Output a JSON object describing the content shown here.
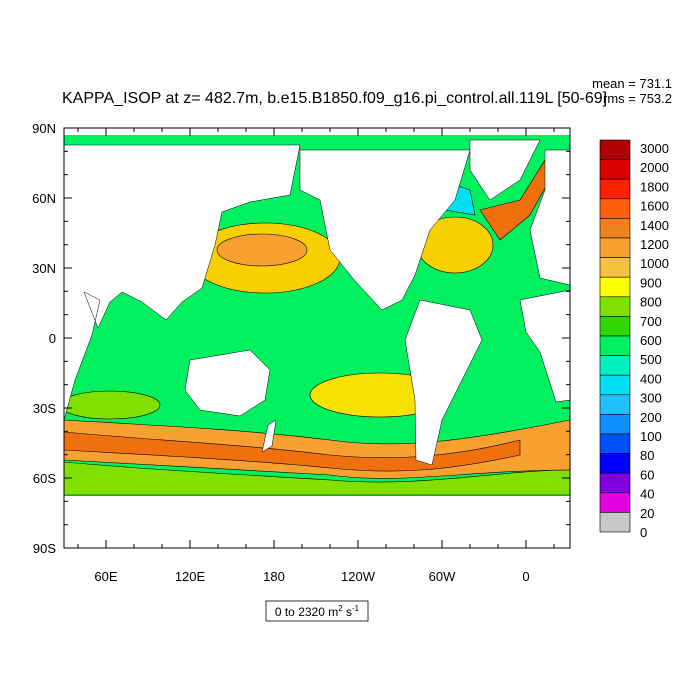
{
  "title": "KAPPA_ISOP at z= 482.7m, b.e15.B1850.f09_g16.pi_control.all.119L [50-69]",
  "stats": {
    "mean": "mean = 731.1",
    "rms": "rms = 753.2"
  },
  "lat_labels": [
    "90N",
    "60N",
    "30N",
    "0",
    "30S",
    "60S",
    "90S"
  ],
  "lon_labels": [
    "60E",
    "120E",
    "180",
    "120W",
    "60W",
    "0"
  ],
  "colorbar_labels": [
    "3000",
    "2000",
    "1800",
    "1600",
    "1400",
    "1200",
    "1000",
    "900",
    "800",
    "700",
    "600",
    "500",
    "400",
    "300",
    "200",
    "100",
    "80",
    "60",
    "40",
    "20",
    "0"
  ],
  "range": {
    "text": "0 to 2320 m",
    "sup1": "2",
    "mid": " s",
    "sup2": "-1"
  }
}
